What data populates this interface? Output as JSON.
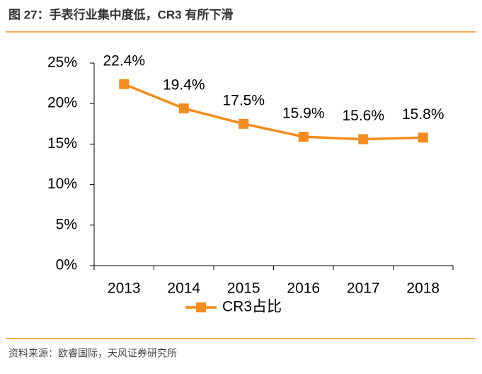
{
  "chart_data": {
    "type": "line",
    "title": "图 27：手表行业集中度低，CR3 有所下滑",
    "source": "资料来源：欧睿国际，天风证券研究所",
    "categories": [
      "2013",
      "2014",
      "2015",
      "2016",
      "2017",
      "2018"
    ],
    "series": [
      {
        "name": "CR3占比",
        "color": "#f28c1e",
        "values": [
          22.4,
          19.4,
          17.5,
          15.9,
          15.6,
          15.8
        ],
        "value_labels": [
          "22.4%",
          "19.4%",
          "17.5%",
          "15.9%",
          "15.6%",
          "15.8%"
        ]
      }
    ],
    "ylim": [
      0,
      25
    ],
    "yticks": [
      {
        "value": 0,
        "label": "0%"
      },
      {
        "value": 5,
        "label": "5%"
      },
      {
        "value": 10,
        "label": "10%"
      },
      {
        "value": 15,
        "label": "15%"
      },
      {
        "value": 20,
        "label": "20%"
      },
      {
        "value": 25,
        "label": "25%"
      }
    ],
    "legend": "bottom"
  }
}
